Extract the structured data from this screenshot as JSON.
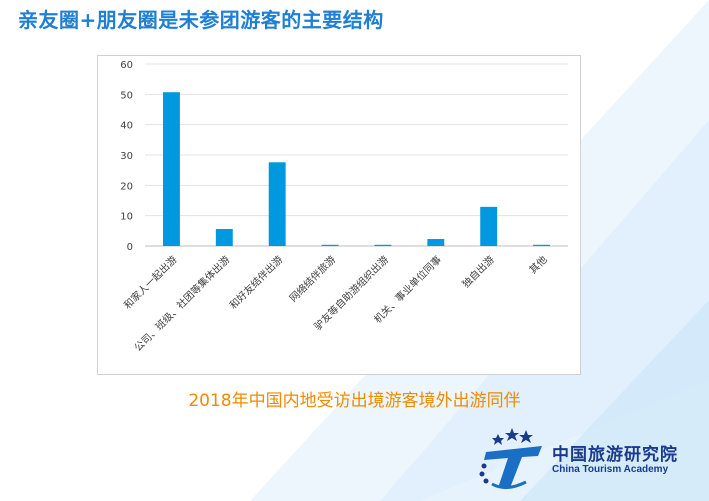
{
  "header": {
    "title": "亲友圈+朋友圈是未参团游客的主要结构"
  },
  "chart_data": {
    "type": "bar",
    "title": "2018年中国内地受访出境游客境外出游同伴",
    "categories": [
      "和家人一起出游",
      "公司、班级、社团等集体出游",
      "和好友结伴出游",
      "网络结伴旅游",
      "驴友等自助游组织出游",
      "机关、事业单位同事",
      "独自出游",
      "其他"
    ],
    "values": [
      50.7,
      5.6,
      27.6,
      0.4,
      0.4,
      2.3,
      12.9,
      0.4
    ],
    "ylim": [
      0,
      60
    ],
    "yticks": [
      0,
      10,
      20,
      30,
      40,
      50,
      60
    ],
    "grid": true,
    "legend": "none",
    "bar_color": "#0099e0"
  },
  "logo": {
    "name_cn": "中国旅游研究院",
    "name_en": "China Tourism Academy"
  },
  "colors": {
    "title": "#1e7fd4",
    "subtitle": "#f08a00",
    "logo": "#1a3a8c",
    "bar": "#0099e0"
  }
}
